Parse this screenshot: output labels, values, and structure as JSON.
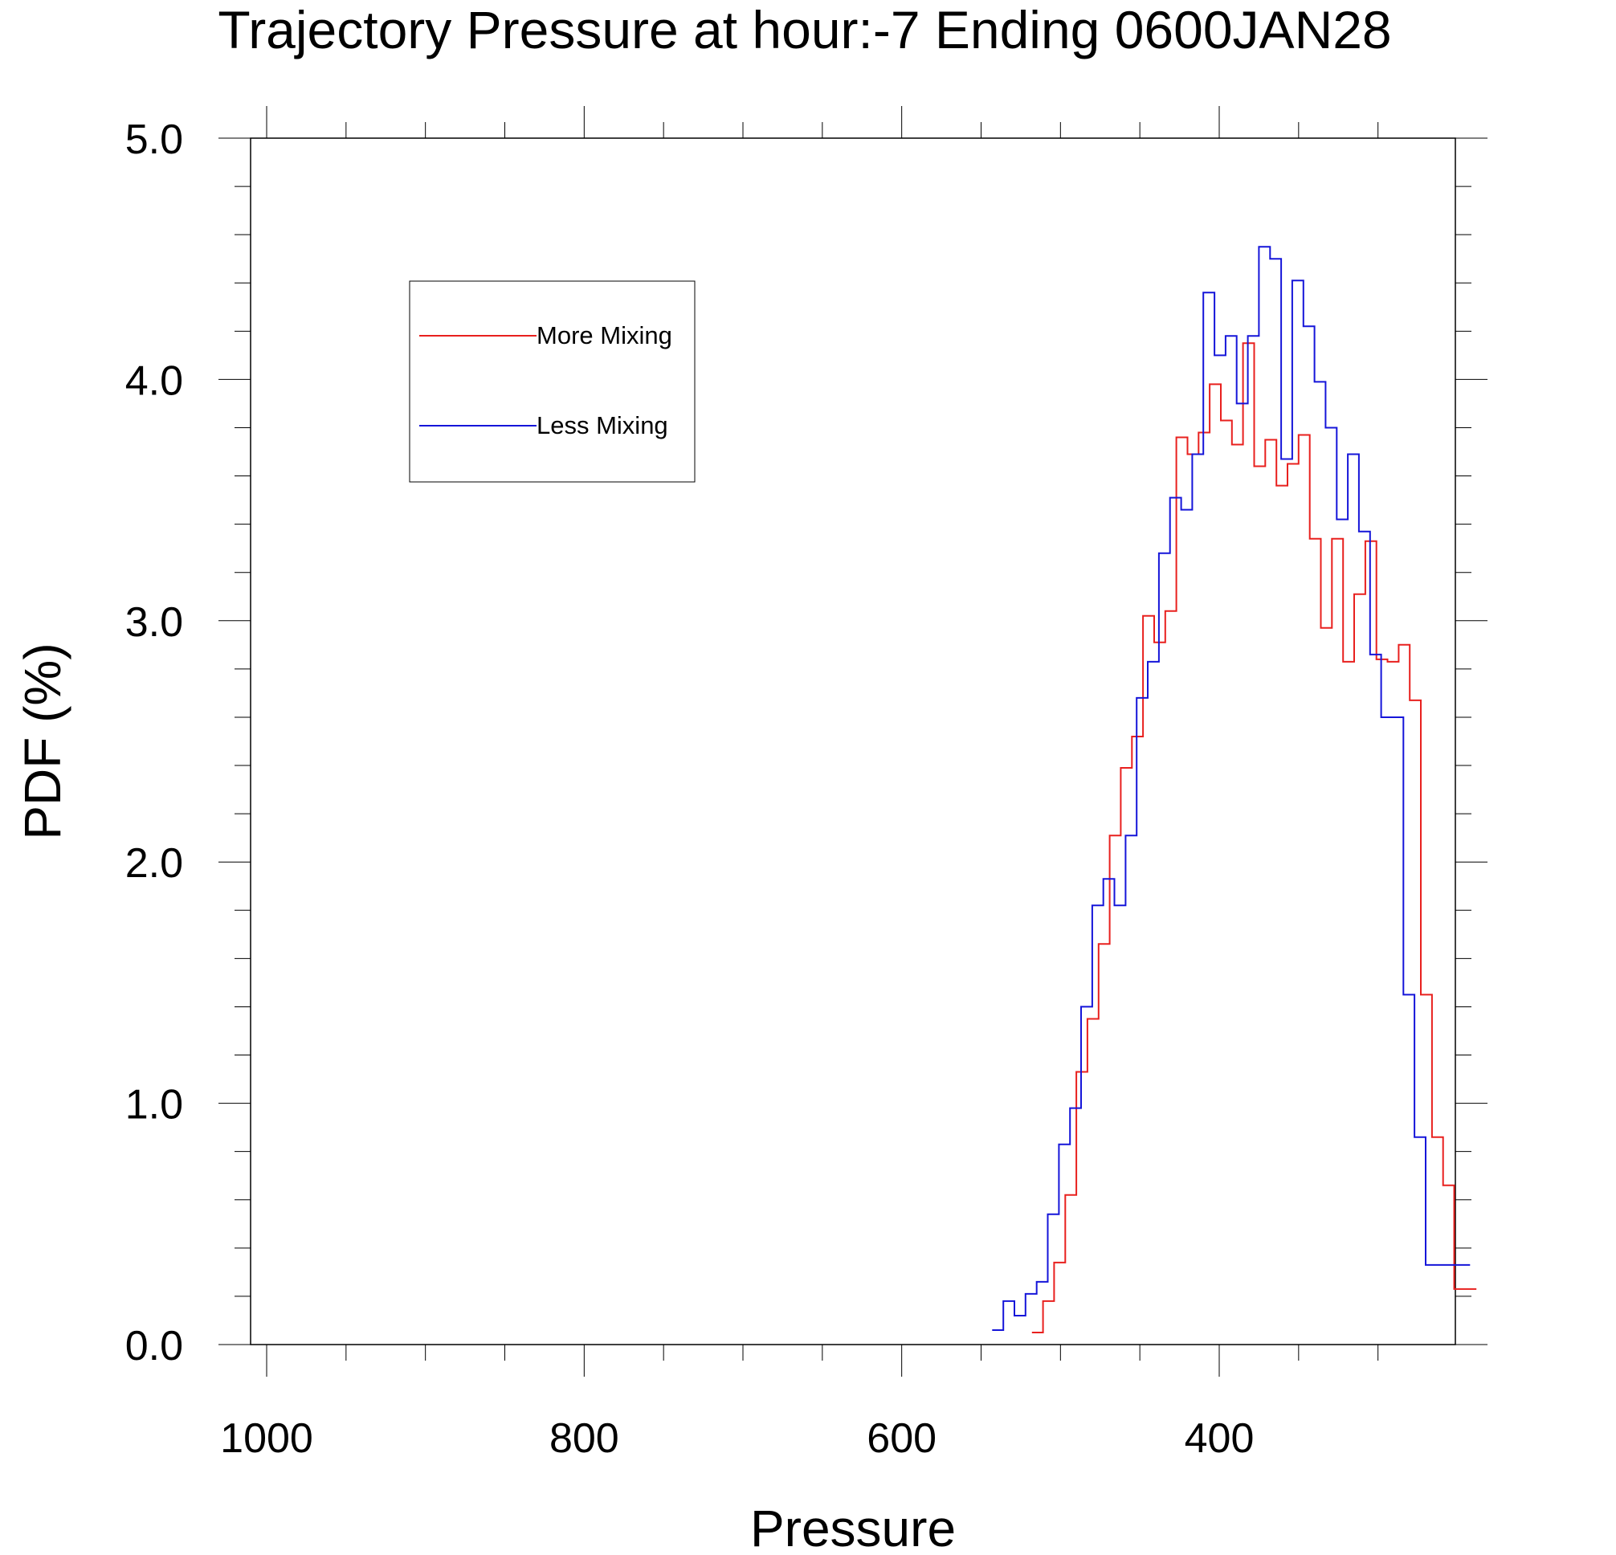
{
  "chart_data": {
    "type": "line",
    "step": true,
    "title": "Trajectory Pressure at hour:-7 Ending 0600JAN28",
    "xlabel": "Pressure",
    "ylabel": "PDF (%)",
    "xlim": [
      1010,
      240
    ],
    "x_reversed": true,
    "ylim": [
      0.0,
      5.0
    ],
    "x_ticks": [
      1000,
      800,
      600,
      400
    ],
    "y_ticks": [
      "0.0",
      "1.0",
      "2.0",
      "3.0",
      "4.0",
      "5.0"
    ],
    "grid": false,
    "legend_position": "top-left",
    "series": [
      {
        "name": "More Mixing",
        "color": "#e8201e",
        "x": [
          518,
          511,
          504,
          497,
          490,
          483,
          476,
          469,
          462,
          455,
          448,
          441,
          434,
          427,
          420,
          413,
          406,
          399,
          392,
          385,
          378,
          371,
          364,
          357,
          350,
          343,
          336,
          329,
          322,
          315,
          308,
          301,
          294,
          287,
          280,
          273,
          266,
          259,
          252,
          245
        ],
        "values": [
          0.05,
          0.18,
          0.34,
          0.62,
          1.13,
          1.35,
          1.66,
          2.11,
          2.39,
          2.52,
          3.02,
          2.91,
          3.04,
          3.76,
          3.69,
          3.78,
          3.98,
          3.83,
          3.73,
          4.15,
          3.64,
          3.75,
          3.56,
          3.65,
          3.77,
          3.34,
          2.97,
          3.34,
          2.83,
          3.11,
          3.33,
          2.84,
          2.83,
          2.9,
          2.67,
          1.45,
          0.86,
          0.66,
          0.23,
          0.23
        ]
      },
      {
        "name": "Less Mixing",
        "color": "#1515d9",
        "x": [
          543,
          536,
          529,
          522,
          515,
          508,
          501,
          494,
          487,
          480,
          473,
          466,
          459,
          452,
          445,
          438,
          431,
          424,
          417,
          410,
          403,
          396,
          389,
          382,
          375,
          368,
          361,
          354,
          347,
          340,
          333,
          326,
          319,
          312,
          305,
          298,
          291,
          284,
          277,
          270,
          263,
          256,
          249
        ],
        "values": [
          0.06,
          0.18,
          0.12,
          0.21,
          0.26,
          0.54,
          0.83,
          0.98,
          1.4,
          1.82,
          1.93,
          1.82,
          2.11,
          2.68,
          2.83,
          3.28,
          3.51,
          3.46,
          3.69,
          4.36,
          4.1,
          4.18,
          3.9,
          4.18,
          4.55,
          4.5,
          3.67,
          4.41,
          4.22,
          3.99,
          3.8,
          3.42,
          3.69,
          3.37,
          2.86,
          2.6,
          2.6,
          1.45,
          0.86,
          0.33,
          0.33,
          0.33,
          0.33
        ]
      }
    ]
  }
}
